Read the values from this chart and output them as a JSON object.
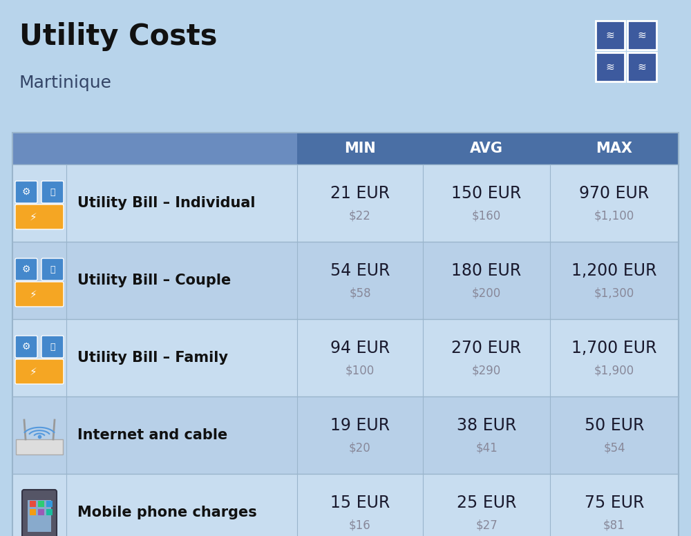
{
  "title": "Utility Costs",
  "subtitle": "Martinique",
  "background_color": "#b8d4eb",
  "header_color": "#4a6fa5",
  "header_text_color": "#ffffff",
  "row_bg_light": "#c8ddf0",
  "row_bg_dark": "#b8d0e8",
  "divider_color": "#9ab5cc",
  "columns": [
    "MIN",
    "AVG",
    "MAX"
  ],
  "rows": [
    {
      "label": "Utility Bill – Individual",
      "min_eur": "21 EUR",
      "min_usd": "$22",
      "avg_eur": "150 EUR",
      "avg_usd": "$160",
      "max_eur": "970 EUR",
      "max_usd": "$1,100"
    },
    {
      "label": "Utility Bill – Couple",
      "min_eur": "54 EUR",
      "min_usd": "$58",
      "avg_eur": "180 EUR",
      "avg_usd": "$200",
      "max_eur": "1,200 EUR",
      "max_usd": "$1,300"
    },
    {
      "label": "Utility Bill – Family",
      "min_eur": "94 EUR",
      "min_usd": "$100",
      "avg_eur": "270 EUR",
      "avg_usd": "$290",
      "max_eur": "1,700 EUR",
      "max_usd": "$1,900"
    },
    {
      "label": "Internet and cable",
      "min_eur": "19 EUR",
      "min_usd": "$20",
      "avg_eur": "38 EUR",
      "avg_usd": "$41",
      "max_eur": "50 EUR",
      "max_usd": "$54"
    },
    {
      "label": "Mobile phone charges",
      "min_eur": "15 EUR",
      "min_usd": "$16",
      "avg_eur": "25 EUR",
      "avg_usd": "$27",
      "max_eur": "75 EUR",
      "max_usd": "$81"
    }
  ],
  "title_fontsize": 30,
  "subtitle_fontsize": 18,
  "header_fontsize": 15,
  "label_fontsize": 15,
  "value_fontsize": 17,
  "usd_fontsize": 12
}
